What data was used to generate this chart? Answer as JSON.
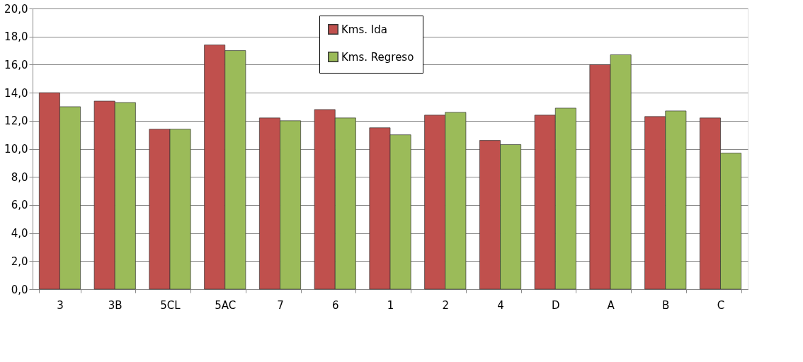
{
  "chart_data": {
    "type": "bar",
    "categories": [
      "3",
      "3B",
      "5CL",
      "5AC",
      "7",
      "6",
      "1",
      "2",
      "4",
      "D",
      "A",
      "B",
      "C"
    ],
    "series": [
      {
        "name": "Kms. Ida",
        "color": "#c0504d",
        "values": [
          14.0,
          13.4,
          11.4,
          17.4,
          12.2,
          12.8,
          11.5,
          12.4,
          10.6,
          12.4,
          16.0,
          12.3,
          12.2
        ]
      },
      {
        "name": "Kms. Regreso",
        "color": "#9bbb59",
        "values": [
          13.0,
          13.3,
          11.4,
          17.0,
          12.0,
          12.2,
          11.0,
          12.6,
          10.3,
          12.9,
          16.7,
          12.7,
          9.7
        ]
      }
    ],
    "ylim": [
      0,
      20
    ],
    "yticks": [
      {
        "value": 0,
        "label": "0,0"
      },
      {
        "value": 2,
        "label": "2,0"
      },
      {
        "value": 4,
        "label": "4,0"
      },
      {
        "value": 6,
        "label": "6,0"
      },
      {
        "value": 8,
        "label": "8,0"
      },
      {
        "value": 10,
        "label": "10,0"
      },
      {
        "value": 12,
        "label": "12,0"
      },
      {
        "value": 14,
        "label": "14,0"
      },
      {
        "value": 16,
        "label": "16,0"
      },
      {
        "value": 18,
        "label": "18,0"
      },
      {
        "value": 20,
        "label": "20,0"
      }
    ],
    "grid": "y",
    "legend": "top"
  }
}
